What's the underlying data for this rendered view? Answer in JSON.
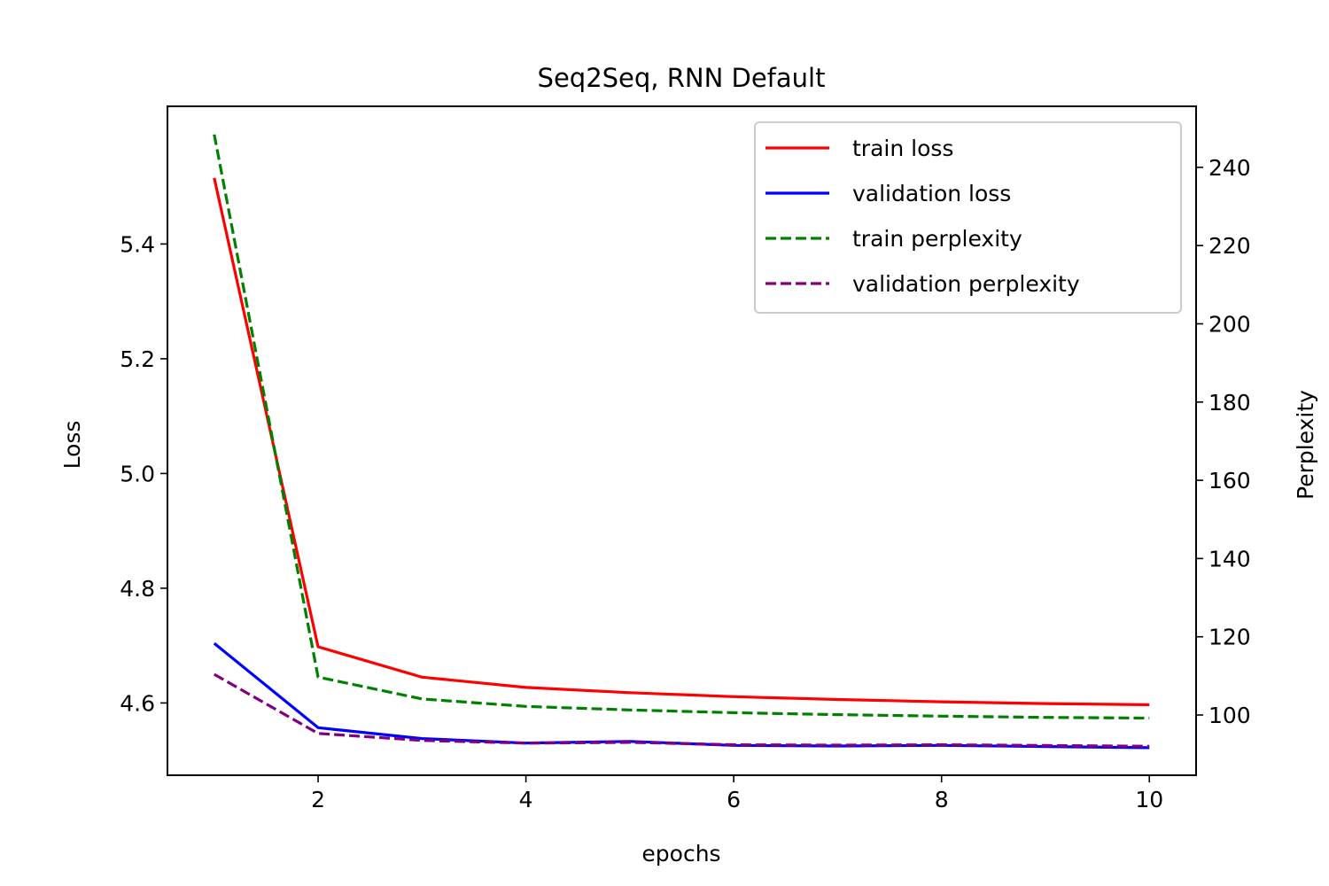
{
  "chart_data": {
    "type": "line",
    "title": "Seq2Seq, RNN Default",
    "xlabel": "epochs",
    "ylabel_left": "Loss",
    "ylabel_right": "Perplexity",
    "xlim": [
      0.55,
      10.45
    ],
    "ylim_left": [
      4.474,
      5.64
    ],
    "ylim_right": [
      84.6,
      255.6
    ],
    "x_ticks": [
      2,
      4,
      6,
      8,
      10
    ],
    "y_ticks_left": [
      4.6,
      4.8,
      5.0,
      5.2,
      5.4
    ],
    "y_ticks_right": [
      100,
      120,
      140,
      160,
      180,
      200,
      220,
      240
    ],
    "legend_position": "top-right",
    "grid": false,
    "x": [
      1,
      2,
      3,
      4,
      5,
      6,
      7,
      8,
      9,
      10
    ],
    "series": [
      {
        "name": "train loss",
        "axis": "left",
        "color": "#ff0000",
        "style": "solid",
        "values": [
          5.515,
          4.698,
          4.645,
          4.627,
          4.618,
          4.611,
          4.606,
          4.602,
          4.599,
          4.597
        ]
      },
      {
        "name": "validation loss",
        "axis": "left",
        "color": "#0000ff",
        "style": "solid",
        "values": [
          4.704,
          4.557,
          4.538,
          4.53,
          4.533,
          4.526,
          4.525,
          4.526,
          4.524,
          4.522
        ]
      },
      {
        "name": "train perplexity",
        "axis": "right",
        "color": "#008000",
        "style": "dashed",
        "values": [
          248.4,
          109.7,
          104.1,
          102.2,
          101.3,
          100.6,
          100.1,
          99.7,
          99.4,
          99.2
        ]
      },
      {
        "name": "validation perplexity",
        "axis": "right",
        "color": "#800080",
        "style": "dashed",
        "values": [
          110.4,
          95.3,
          93.5,
          92.8,
          93.0,
          92.4,
          92.3,
          92.4,
          92.2,
          92.0
        ]
      }
    ]
  }
}
